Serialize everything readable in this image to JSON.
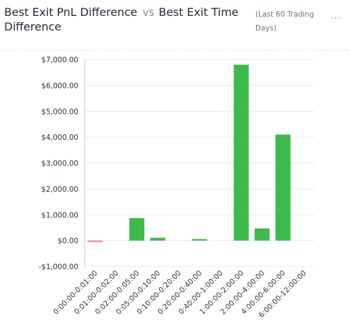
{
  "header": {
    "title_part1": "Best Exit PnL Difference",
    "vs_label": "VS",
    "title_part2": "Best Exit Time",
    "title_line2": "Difference",
    "subtitle": "(Last 60 Trading Days)",
    "menu_icon": "more-horizontal-icon",
    "menu_glyph": "···"
  },
  "colors": {
    "positive": "#3cbb4c",
    "negative": "#ef7d7d",
    "grid": "#e6e8ec",
    "axis": "#c9ced6"
  },
  "chart_data": {
    "type": "bar",
    "title": "Best Exit PnL Difference VS Best Exit Time Difference",
    "subtitle": "(Last 60 Trading Days)",
    "xlabel": "",
    "ylabel": "",
    "categories": [
      "0:00:00-0:01:00",
      "0:01:00-0:02:00",
      "0:02:00-0:05:00",
      "0:05:00-0:10:00",
      "0:10:00-0:20:00",
      "0:20:00-0:40:00",
      "0:40:00-1:00:00",
      "1:00:00-2:00:00",
      "2:00:00-4:00:00",
      "4:00:00-6:00:00",
      "6:00:00-12:00:00"
    ],
    "values": [
      -50,
      0,
      870,
      110,
      0,
      60,
      0,
      6800,
      470,
      4100,
      0
    ],
    "ylim": [
      -1000,
      7000
    ],
    "yticks": [
      -1000,
      0,
      1000,
      2000,
      3000,
      4000,
      5000,
      6000,
      7000
    ],
    "ytick_labels": [
      "-$1,000.00",
      "$0.00",
      "$1,000.00",
      "$2,000.00",
      "$3,000.00",
      "$4,000.00",
      "$5,000.00",
      "$6,000.00",
      "$7,000.00"
    ],
    "grid": true,
    "legend": "none"
  }
}
